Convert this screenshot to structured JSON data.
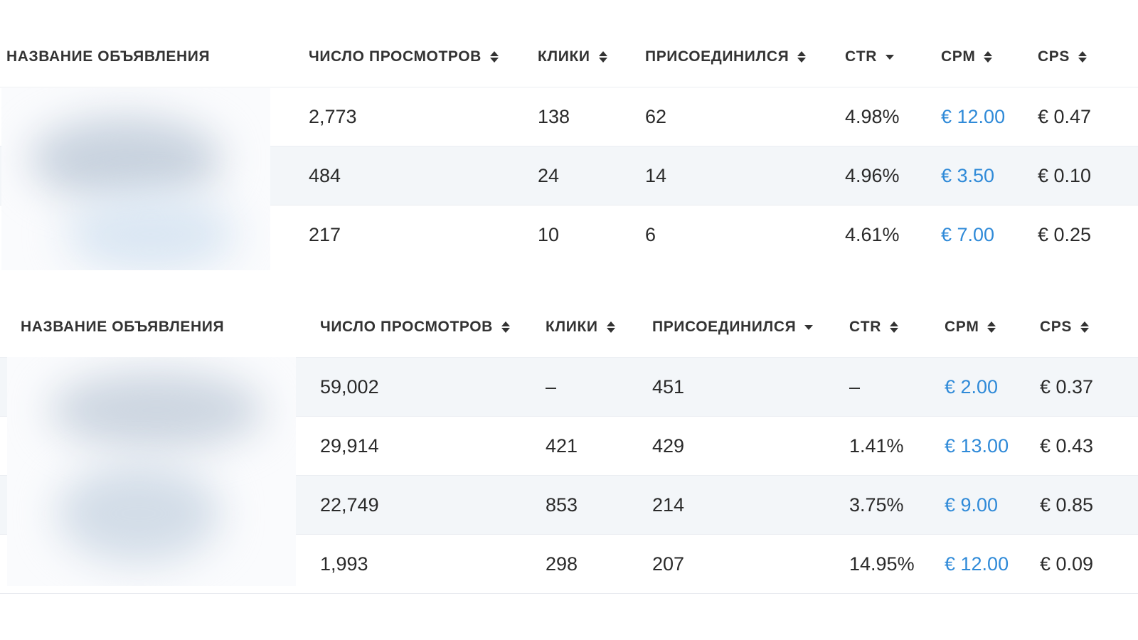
{
  "tables": [
    {
      "headers": [
        {
          "label": "НАЗВАНИЕ ОБЪЯВЛЕНИЯ",
          "sort": "none"
        },
        {
          "label": "ЧИСЛО ПРОСМОТРОВ",
          "sort": "both"
        },
        {
          "label": "КЛИКИ",
          "sort": "both"
        },
        {
          "label": "ПРИСОЕДИНИЛСЯ",
          "sort": "both"
        },
        {
          "label": "CTR",
          "sort": "desc"
        },
        {
          "label": "CPM",
          "sort": "both"
        },
        {
          "label": "CPS",
          "sort": "both"
        }
      ],
      "rows": [
        {
          "views": "2,773",
          "clicks": "138",
          "joined": "62",
          "ctr": "4.98%",
          "cpm": "€ 12.00",
          "cps": "€ 0.47"
        },
        {
          "views": "484",
          "clicks": "24",
          "joined": "14",
          "ctr": "4.96%",
          "cpm": "€ 3.50",
          "cps": "€ 0.10"
        },
        {
          "views": "217",
          "clicks": "10",
          "joined": "6",
          "ctr": "4.61%",
          "cpm": "€ 7.00",
          "cps": "€ 0.25"
        }
      ]
    },
    {
      "headers": [
        {
          "label": "НАЗВАНИЕ ОБЪЯВЛЕНИЯ",
          "sort": "none"
        },
        {
          "label": "ЧИСЛО ПРОСМОТРОВ",
          "sort": "both"
        },
        {
          "label": "КЛИКИ",
          "sort": "both"
        },
        {
          "label": "ПРИСОЕДИНИЛСЯ",
          "sort": "desc"
        },
        {
          "label": "CTR",
          "sort": "both"
        },
        {
          "label": "CPM",
          "sort": "both"
        },
        {
          "label": "CPS",
          "sort": "both"
        }
      ],
      "rows": [
        {
          "views": "59,002",
          "clicks": "–",
          "joined": "451",
          "ctr": "–",
          "cpm": "€ 2.00",
          "cps": "€ 0.37"
        },
        {
          "views": "29,914",
          "clicks": "421",
          "joined": "429",
          "ctr": "1.41%",
          "cpm": "€ 13.00",
          "cps": "€ 0.43"
        },
        {
          "views": "22,749",
          "clicks": "853",
          "joined": "214",
          "ctr": "3.75%",
          "cpm": "€ 9.00",
          "cps": "€ 0.85"
        },
        {
          "views": "1,993",
          "clicks": "298",
          "joined": "207",
          "ctr": "14.95%",
          "cpm": "€ 12.00",
          "cps": "€ 0.09"
        }
      ]
    }
  ],
  "colors": {
    "link": "#2f8ad8",
    "row_alt": "#f3f6f9",
    "text": "#2a2a2a"
  }
}
